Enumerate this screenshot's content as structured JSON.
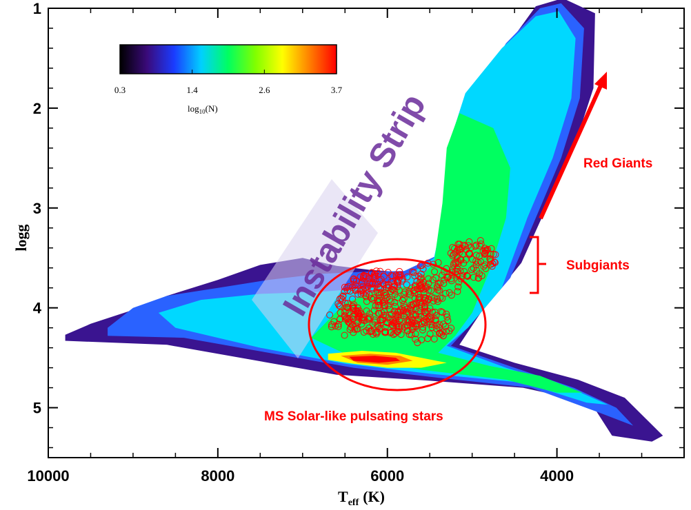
{
  "chart_data": {
    "type": "heatmap",
    "xlabel": "T",
    "xlabel_sub": "eff",
    "xlabel_unit": "(K)",
    "ylabel": "logg",
    "xlim": [
      10000,
      2500
    ],
    "ylim": [
      1,
      5.5
    ],
    "x_ticks": [
      10000,
      8000,
      6000,
      4000
    ],
    "y_ticks": [
      1,
      2,
      3,
      4,
      5
    ],
    "colorbar": {
      "ticks": [
        "0.3",
        "1.4",
        "2.6",
        "3.7"
      ],
      "label": "log",
      "label_sub": "10",
      "label_end": "(N)",
      "colormap": [
        "#000000",
        "#3a0a7a",
        "#1a3cff",
        "#00d0ff",
        "#00ff60",
        "#80ff00",
        "#ffff00",
        "#ff8000",
        "#ff0000"
      ]
    },
    "annotations": {
      "instability_strip": "Instability Strip",
      "red_giants": "Red Giants",
      "subgiants": "Subgiants",
      "ms_solar_like": "MS Solar-like pulsating stars"
    },
    "density_contours": [
      {
        "level": 1,
        "color": "#3a1490",
        "points": [
          [
            9800,
            4.27
          ],
          [
            9500,
            4.16
          ],
          [
            9000,
            4.02
          ],
          [
            8600,
            3.88
          ],
          [
            8000,
            3.72
          ],
          [
            7500,
            3.57
          ],
          [
            7000,
            3.5
          ],
          [
            6600,
            3.58
          ],
          [
            6200,
            3.62
          ],
          [
            5700,
            3.65
          ],
          [
            5300,
            3.52
          ],
          [
            5100,
            3.0
          ],
          [
            5050,
            2.4
          ],
          [
            5000,
            2.0
          ],
          [
            4650,
            1.45
          ],
          [
            4250,
            0.98
          ],
          [
            3930,
            0.9
          ],
          [
            3550,
            1.05
          ],
          [
            3570,
            1.8
          ],
          [
            3800,
            2.4
          ],
          [
            4100,
            2.95
          ],
          [
            4420,
            3.55
          ],
          [
            4900,
            4.05
          ],
          [
            5150,
            4.37
          ],
          [
            4500,
            4.55
          ],
          [
            3750,
            4.72
          ],
          [
            3200,
            4.9
          ],
          [
            2750,
            5.28
          ],
          [
            2880,
            5.34
          ],
          [
            3350,
            5.28
          ],
          [
            3600,
            4.95
          ],
          [
            4400,
            4.8
          ],
          [
            5500,
            4.73
          ],
          [
            6600,
            4.67
          ],
          [
            7600,
            4.52
          ],
          [
            8600,
            4.37
          ],
          [
            9800,
            4.33
          ]
        ]
      },
      {
        "level": 2,
        "color": "#2a62ff",
        "points": [
          [
            9300,
            4.2
          ],
          [
            9000,
            4.0
          ],
          [
            8600,
            3.88
          ],
          [
            8000,
            3.8
          ],
          [
            7400,
            3.72
          ],
          [
            6800,
            3.66
          ],
          [
            6300,
            3.64
          ],
          [
            5800,
            3.63
          ],
          [
            5350,
            3.45
          ],
          [
            5200,
            2.9
          ],
          [
            5150,
            2.3
          ],
          [
            5000,
            1.9
          ],
          [
            4600,
            1.35
          ],
          [
            4200,
            1.0
          ],
          [
            3950,
            0.95
          ],
          [
            3680,
            1.2
          ],
          [
            3730,
            1.9
          ],
          [
            3950,
            2.5
          ],
          [
            4250,
            3.1
          ],
          [
            4550,
            3.7
          ],
          [
            5000,
            4.15
          ],
          [
            5250,
            4.38
          ],
          [
            4500,
            4.6
          ],
          [
            3800,
            4.8
          ],
          [
            3300,
            5.0
          ],
          [
            3100,
            5.18
          ],
          [
            3500,
            5.05
          ],
          [
            4300,
            4.8
          ],
          [
            5400,
            4.7
          ],
          [
            6400,
            4.6
          ],
          [
            7400,
            4.45
          ],
          [
            8400,
            4.3
          ],
          [
            9300,
            4.28
          ]
        ]
      },
      {
        "level": 3,
        "color": "#00d8ff",
        "points": [
          [
            8700,
            4.05
          ],
          [
            8200,
            3.92
          ],
          [
            7500,
            3.86
          ],
          [
            6800,
            3.84
          ],
          [
            6200,
            3.8
          ],
          [
            5800,
            3.7
          ],
          [
            5450,
            3.5
          ],
          [
            5300,
            2.9
          ],
          [
            5250,
            2.3
          ],
          [
            5080,
            1.85
          ],
          [
            4650,
            1.4
          ],
          [
            4250,
            1.08
          ],
          [
            3980,
            1.03
          ],
          [
            3780,
            1.3
          ],
          [
            3830,
            1.9
          ],
          [
            4050,
            2.5
          ],
          [
            4350,
            3.1
          ],
          [
            4650,
            3.8
          ],
          [
            5050,
            4.2
          ],
          [
            5300,
            4.38
          ],
          [
            4600,
            4.6
          ],
          [
            3900,
            4.78
          ],
          [
            3400,
            4.97
          ],
          [
            3650,
            4.95
          ],
          [
            4400,
            4.75
          ],
          [
            5500,
            4.66
          ],
          [
            6500,
            4.56
          ],
          [
            7500,
            4.4
          ],
          [
            8500,
            4.2
          ]
        ]
      },
      {
        "level": 4,
        "color": "#00ff60",
        "points": [
          [
            6900,
            4.3
          ],
          [
            6500,
            3.95
          ],
          [
            6100,
            3.82
          ],
          [
            5700,
            3.78
          ],
          [
            5450,
            3.55
          ],
          [
            5350,
            2.95
          ],
          [
            5300,
            2.4
          ],
          [
            5150,
            2.05
          ],
          [
            4750,
            2.2
          ],
          [
            4550,
            2.6
          ],
          [
            4600,
            3.1
          ],
          [
            4780,
            3.6
          ],
          [
            5000,
            4.05
          ],
          [
            5200,
            4.28
          ],
          [
            5400,
            4.45
          ],
          [
            4800,
            4.58
          ],
          [
            4200,
            4.68
          ],
          [
            3700,
            4.85
          ],
          [
            4000,
            4.85
          ],
          [
            4600,
            4.72
          ],
          [
            5600,
            4.62
          ],
          [
            6400,
            4.5
          ]
        ]
      },
      {
        "level": 5,
        "color": "#ffff00",
        "points": [
          [
            6700,
            4.46
          ],
          [
            6300,
            4.43
          ],
          [
            5900,
            4.45
          ],
          [
            5600,
            4.5
          ],
          [
            5300,
            4.55
          ],
          [
            5600,
            4.6
          ],
          [
            6000,
            4.6
          ],
          [
            6400,
            4.56
          ],
          [
            6700,
            4.52
          ]
        ]
      },
      {
        "level": 6,
        "color": "#ff8000",
        "points": [
          [
            6550,
            4.48
          ],
          [
            6200,
            4.46
          ],
          [
            5850,
            4.48
          ],
          [
            5700,
            4.53
          ],
          [
            6000,
            4.57
          ],
          [
            6350,
            4.55
          ]
        ]
      },
      {
        "level": 7,
        "color": "#ff0000",
        "points": [
          [
            6450,
            4.49
          ],
          [
            6150,
            4.48
          ],
          [
            5900,
            4.5
          ],
          [
            5850,
            4.53
          ],
          [
            6100,
            4.55
          ],
          [
            6400,
            4.53
          ]
        ]
      }
    ]
  }
}
